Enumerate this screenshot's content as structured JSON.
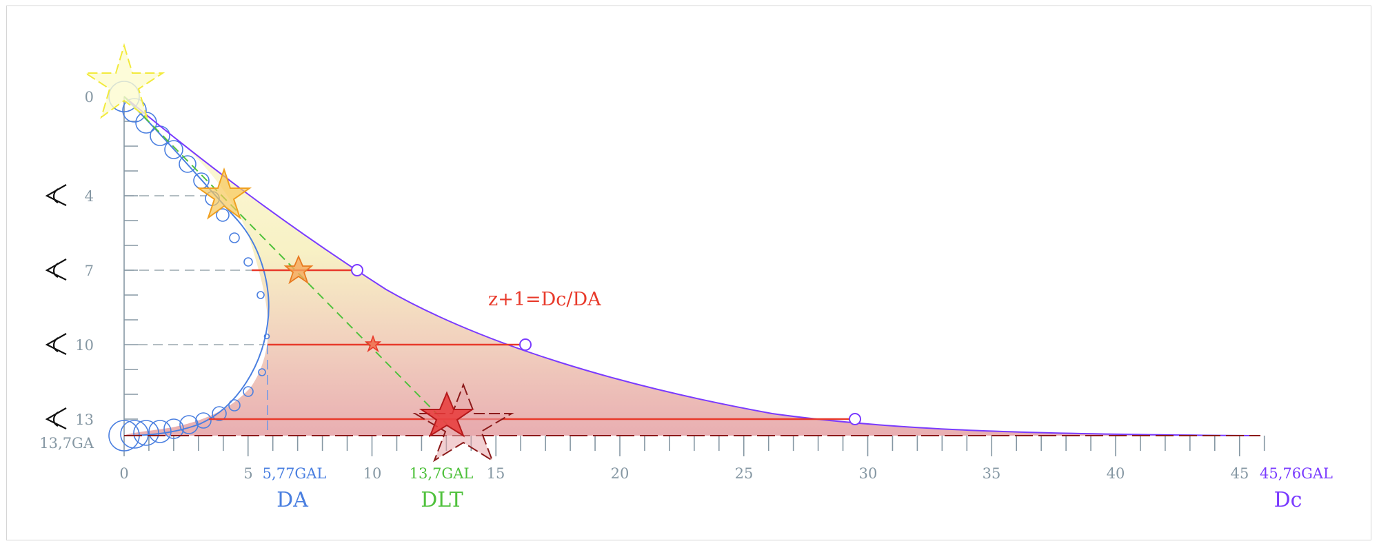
{
  "diagram": {
    "formula": "z+1=Dc/DA",
    "x_ticks": [
      "0",
      "5",
      "10",
      "15",
      "20",
      "25",
      "30",
      "35",
      "40",
      "45"
    ],
    "y_ticks": [
      "0",
      "4",
      "7",
      "10",
      "13"
    ],
    "y_bottom_label": "13,7GA",
    "da_value_label": "5,77GAL",
    "dlt_value_label": "13,7GAL",
    "dc_value_label": "45,76GAL",
    "da_symbol": "DA",
    "dlt_symbol": "DLT",
    "dc_symbol": "Dc",
    "eye_times": [
      "4",
      "7",
      "10",
      "13"
    ],
    "colors": {
      "da_curve": "#4a7fe0",
      "dc_curve": "#7a3bff",
      "dlt_line": "#4fc13c",
      "distance_lines": "#e8392a",
      "axis": "#8597a3",
      "fill_top": "#fbf7c8",
      "fill_bottom": "#e8aeb0"
    },
    "icons": [
      "eye-icon",
      "star-icon"
    ]
  }
}
